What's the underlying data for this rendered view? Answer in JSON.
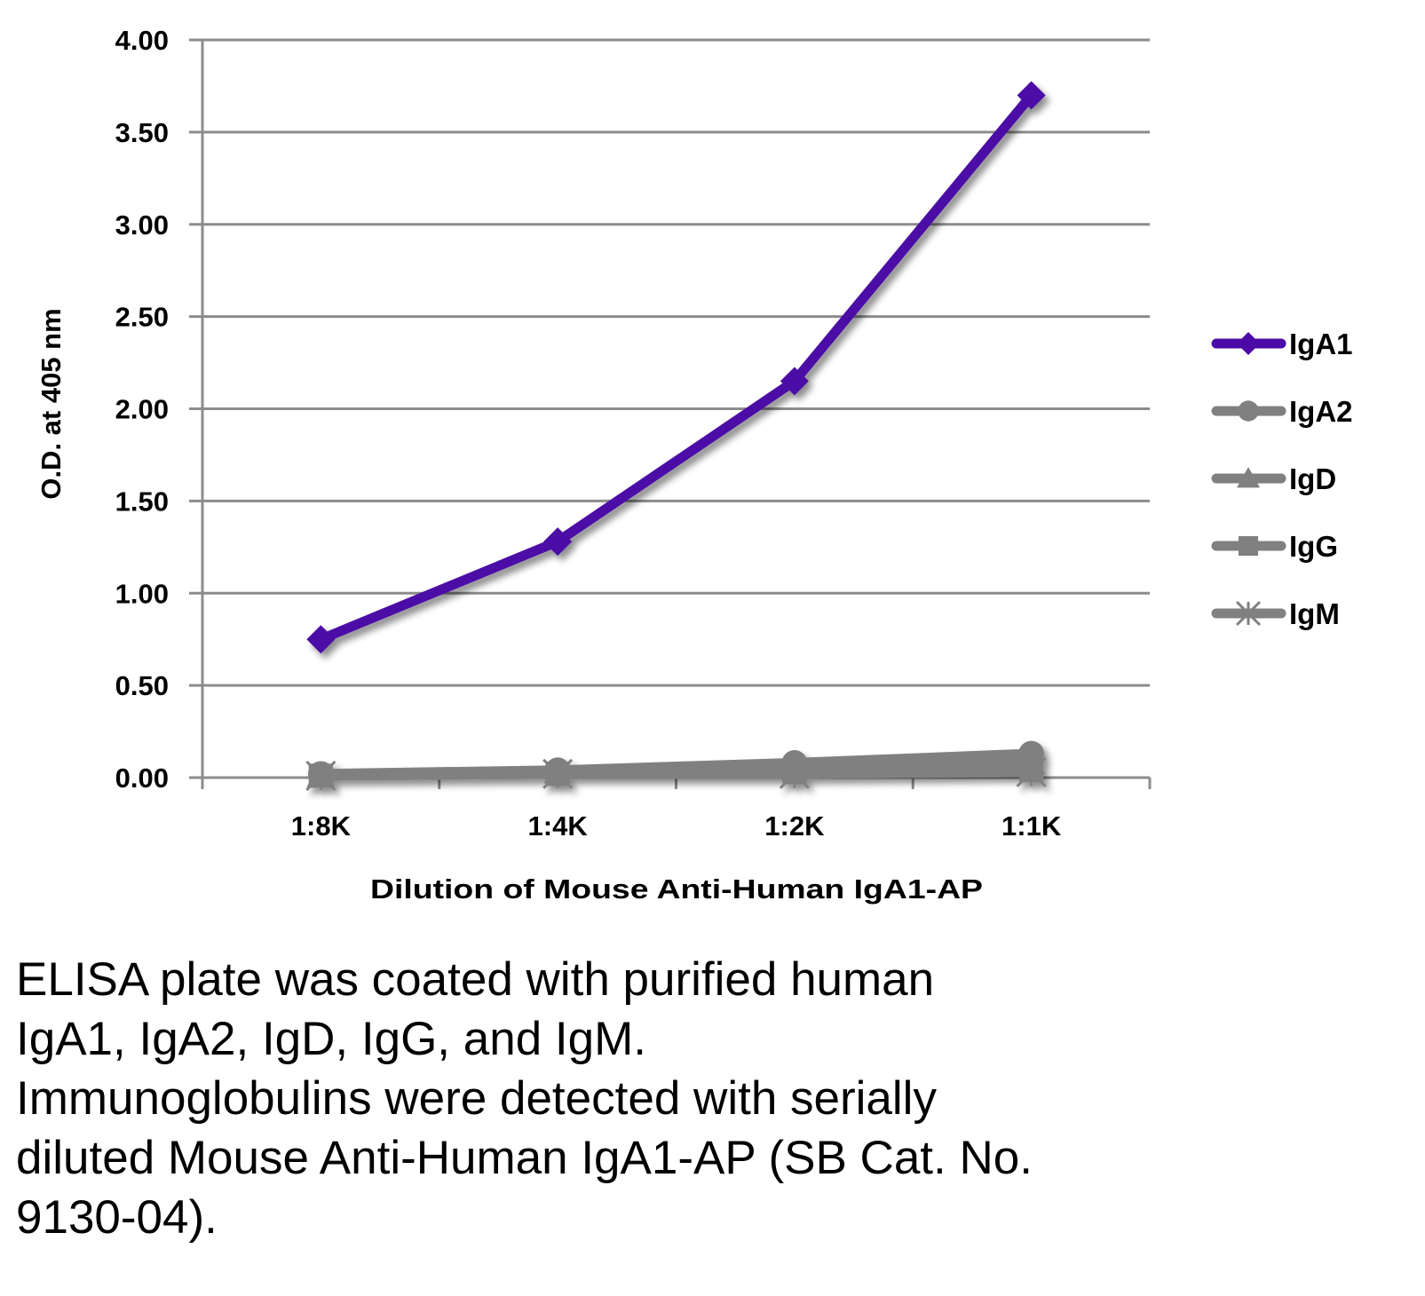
{
  "chart_data": {
    "type": "line",
    "title": "",
    "xlabel": "Dilution of Mouse Anti-Human IgA1-AP",
    "ylabel": "O.D. at 405 nm",
    "categories": [
      "1:8K",
      "1:4K",
      "1:2K",
      "1:1K"
    ],
    "ylim": [
      0,
      4
    ],
    "yticks": [
      "0.00",
      "0.50",
      "1.00",
      "1.50",
      "2.00",
      "2.50",
      "3.00",
      "3.50",
      "4.00"
    ],
    "grid": true,
    "legend_position": "right",
    "series": [
      {
        "name": "IgA1",
        "marker": "diamond",
        "color": "#4B0AA6",
        "values": [
          0.75,
          1.28,
          2.15,
          3.7
        ]
      },
      {
        "name": "IgA2",
        "marker": "circle",
        "color": "#808080",
        "values": [
          0.02,
          0.04,
          0.08,
          0.13
        ]
      },
      {
        "name": "IgD",
        "marker": "triangle",
        "color": "#808080",
        "values": [
          0.01,
          0.03,
          0.05,
          0.08
        ]
      },
      {
        "name": "IgG",
        "marker": "square",
        "color": "#808080",
        "values": [
          0.01,
          0.02,
          0.03,
          0.04
        ]
      },
      {
        "name": "IgM",
        "marker": "asterisk",
        "color": "#808080",
        "values": [
          0.01,
          0.02,
          0.02,
          0.03
        ]
      }
    ]
  },
  "caption": {
    "lines": [
      "ELISA plate was coated with purified human",
      "IgA1, IgA2, IgD, IgG, and IgM.",
      "Immunoglobulins were detected with serially",
      "diluted Mouse Anti-Human IgA1-AP (SB Cat. No.",
      "9130-04)."
    ]
  },
  "colors": {
    "gridline": "#8C8C8C",
    "axis": "#8C8C8C"
  }
}
